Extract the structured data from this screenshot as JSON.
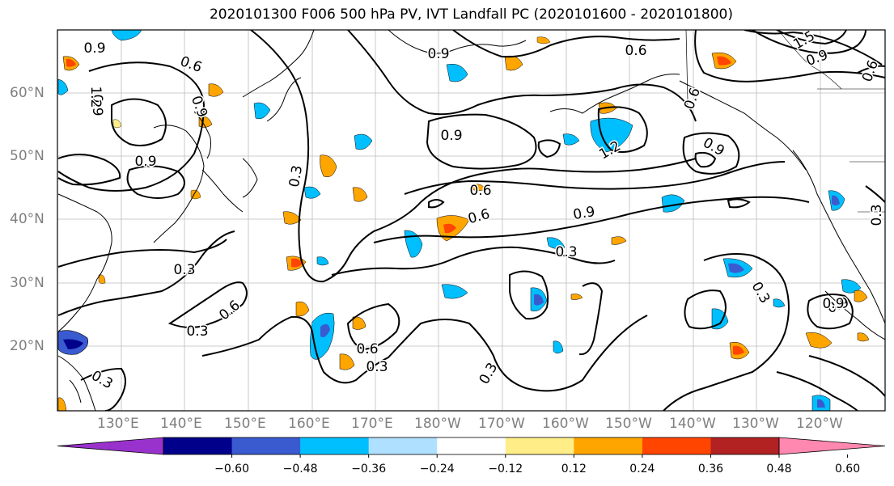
{
  "title": "2020101300 F006 500 hPa PV, IVT Landfall PC (2020101600 - 2020101800)",
  "lat_labels": [
    "60°N",
    "50°N",
    "40°N",
    "30°N",
    "20°N"
  ],
  "lon_labels": [
    "130°E",
    "140°E",
    "150°E",
    "160°E",
    "170°E",
    "180°W",
    "170°W",
    "160°W",
    "150°W",
    "140°W",
    "130°W",
    "120°W"
  ],
  "contour_labels": [
    "0.9",
    "0.6",
    "0.9",
    "0.6",
    "0.9",
    "1.2",
    "0.9",
    "0.3",
    "0.9",
    "0.6",
    "0.9",
    "1.2",
    "0.6",
    "0.9",
    "0.9",
    "0.6",
    "0.3",
    "0.3",
    "0.6",
    "0.3",
    "0.6",
    "0.3",
    "0.3",
    "0.3",
    "0.3",
    "0.9",
    "1.5",
    "0.9",
    "0.6",
    "0.3",
    "0.9"
  ],
  "colorbar": {
    "ticks": [
      "−0.60",
      "−0.48",
      "−0.36",
      "−0.24",
      "−0.12",
      "0.12",
      "0.24",
      "0.36",
      "0.48",
      "0.60"
    ],
    "colors": [
      "#9932cc",
      "#00008b",
      "#3a5bd0",
      "#00bfff",
      "#b0e0ff",
      "#ffffff",
      "#ffee88",
      "#ffa500",
      "#ff4500",
      "#b22222",
      "#ff88b0"
    ]
  },
  "colors": {
    "land": "#000000",
    "grid": "#bbbbbb",
    "contour": "#000000"
  }
}
